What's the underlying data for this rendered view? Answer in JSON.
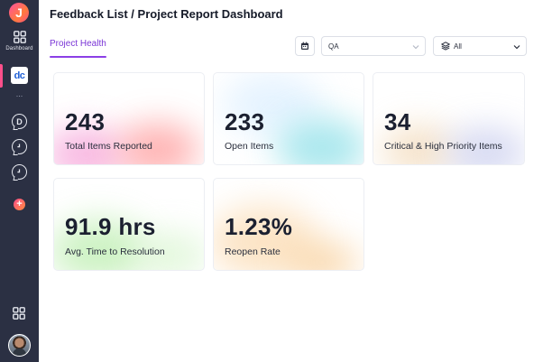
{
  "sidebar": {
    "logo_letter": "J",
    "dashboard_label": "Dashboard",
    "app_badge": "dc",
    "more_dots": "...",
    "circle_items": [
      "D",
      "",
      ""
    ],
    "add_symbol": "+"
  },
  "header": {
    "title": "Feedback List / Project Report Dashboard"
  },
  "tabs": [
    {
      "label": "Project Health",
      "active": true
    }
  ],
  "filters": {
    "environment": {
      "value": "QA"
    },
    "scope": {
      "value": "All"
    }
  },
  "metrics": [
    {
      "value": "243",
      "label": "Total Items Reported"
    },
    {
      "value": "233",
      "label": "Open Items"
    },
    {
      "value": "34",
      "label": "Critical & High Priority Items"
    },
    {
      "value": "91.9 hrs",
      "label": "Avg. Time to Resolution"
    },
    {
      "value": "1.23%",
      "label": "Reopen Rate"
    }
  ],
  "colors": {
    "sidebar_bg": "#2b3043",
    "accent": "#8b3fe6",
    "brand_pink": "#ff4f8b"
  },
  "icons": {
    "logo": "app-logo-icon",
    "dashboard": "grid-icon",
    "calendar": "calendar-icon",
    "layers": "layers-icon",
    "chevron": "chevron-down-icon",
    "apps": "apps-grid-icon",
    "avatar": "user-avatar"
  }
}
